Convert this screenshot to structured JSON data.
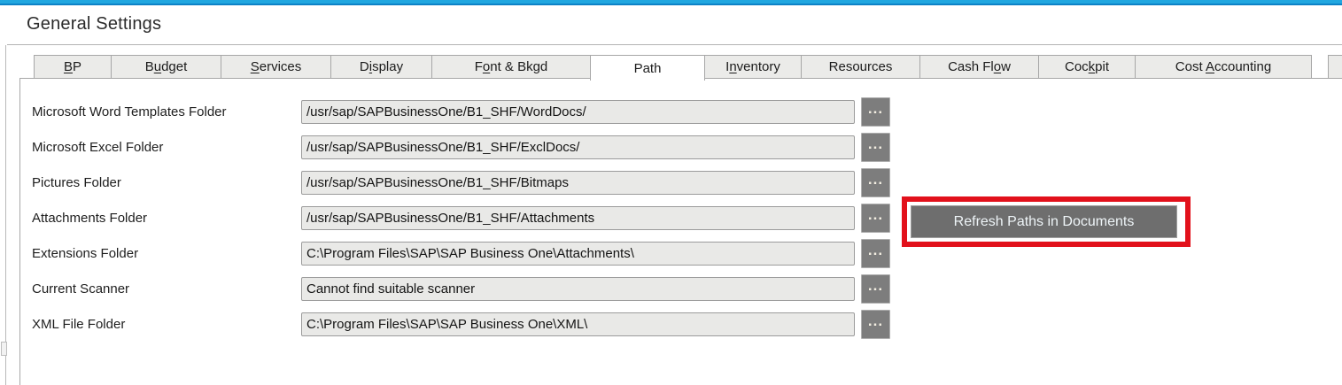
{
  "window": {
    "title": "General Settings"
  },
  "tabs": {
    "items": [
      {
        "label": "BP",
        "underline": 0,
        "selected": false
      },
      {
        "label": "Budget",
        "underline": 1,
        "selected": false
      },
      {
        "label": "Services",
        "underline": 0,
        "selected": false
      },
      {
        "label": "Display",
        "underline": 1,
        "selected": false
      },
      {
        "label": "Font & Bkgd",
        "underline": 1,
        "selected": false
      },
      {
        "label": "Path",
        "underline": -1,
        "selected": true
      },
      {
        "label": "Inventory",
        "underline": 1,
        "selected": false
      },
      {
        "label": "Resources",
        "underline": -1,
        "selected": false
      },
      {
        "label": "Cash Flow",
        "underline": 7,
        "selected": false
      },
      {
        "label": "Cockpit",
        "underline": 3,
        "selected": false
      },
      {
        "label": "Cost Accounting",
        "underline": 5,
        "selected": false
      }
    ]
  },
  "form": {
    "browse_label": "...",
    "rows": [
      {
        "label": "Microsoft Word Templates Folder",
        "value": "/usr/sap/SAPBusinessOne/B1_SHF/WordDocs/"
      },
      {
        "label": "Microsoft Excel Folder",
        "value": "/usr/sap/SAPBusinessOne/B1_SHF/ExclDocs/"
      },
      {
        "label": "Pictures Folder",
        "value": "/usr/sap/SAPBusinessOne/B1_SHF/Bitmaps"
      },
      {
        "label": "Attachments Folder",
        "value": "/usr/sap/SAPBusinessOne/B1_SHF/Attachments"
      },
      {
        "label": "Extensions Folder",
        "value": "C:\\Program Files\\SAP\\SAP Business One\\Attachments\\"
      },
      {
        "label": "Current Scanner",
        "value": "Cannot find suitable scanner"
      },
      {
        "label": "XML File Folder",
        "value": "C:\\Program Files\\SAP\\SAP Business One\\XML\\"
      }
    ]
  },
  "actions": {
    "refresh_button": "Refresh Paths in Documents"
  },
  "annotation": {
    "type": "highlight-rectangle",
    "color": "#e2111b"
  },
  "colors": {
    "top_strip": "#21a7e0",
    "top_strip_edge": "#0d82c6",
    "field_background": "#e9e9e7",
    "button_gray": "#6e6e6e",
    "highlight_red": "#e2111b"
  }
}
